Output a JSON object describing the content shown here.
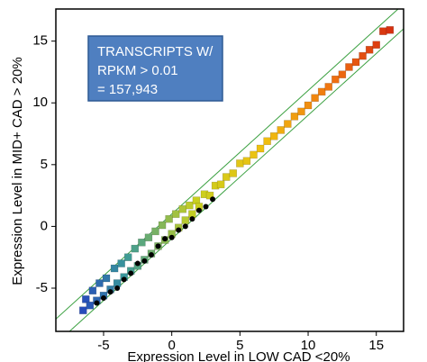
{
  "chart_data": {
    "type": "scatter",
    "xlabel": "Expression Level in LOW CAD <20%",
    "ylabel": "Expression Level in MID+ CAD > 20%",
    "annotation": [
      "TRANSCRIPTS W/",
      "RPKM > 0.01",
      "= 157,943"
    ],
    "xlim": [
      -8.5,
      17
    ],
    "ylim": [
      -8.5,
      17.6
    ],
    "xticks": [
      -5,
      0,
      5,
      10,
      15
    ],
    "yticks": [
      -5,
      0,
      5,
      10,
      15
    ],
    "grid": false,
    "colormap": [
      "#1a1ad0",
      "#3a9a9a",
      "#c8d020",
      "#f0c010",
      "#f07010",
      "#d02010"
    ],
    "x": [
      -6.5,
      -6.3,
      -6,
      -5.8,
      -5.5,
      -5.3,
      -5,
      -4.8,
      -4.5,
      -4.2,
      -4,
      -3.7,
      -3.5,
      -3.2,
      -3,
      -2.7,
      -2.5,
      -2.2,
      -2,
      -1.7,
      -1.5,
      -1.2,
      -1,
      -0.7,
      -0.5,
      -0.2,
      0,
      0.3,
      0.5,
      0.8,
      1,
      1.3,
      1.5,
      1.8,
      2,
      2.4,
      2.8,
      3.2,
      3.6,
      4,
      4.5,
      5,
      5.5,
      6,
      6.5,
      7,
      7.5,
      8,
      8.5,
      9,
      9.5,
      10,
      10.5,
      11,
      11.5,
      12,
      12.5,
      13,
      13.5,
      14,
      14.5,
      15,
      15.5,
      16
    ],
    "y": [
      -6.8,
      -5.9,
      -6.4,
      -5.2,
      -6.0,
      -4.6,
      -5.6,
      -4.2,
      -5.1,
      -3.4,
      -4.6,
      -3.0,
      -4.1,
      -2.5,
      -3.6,
      -1.8,
      -3.2,
      -1.3,
      -2.7,
      -0.9,
      -2.2,
      -0.4,
      -1.6,
      0.1,
      -1.1,
      0.6,
      -0.6,
      1.0,
      -0.1,
      1.4,
      0.5,
      1.7,
      1.0,
      2.1,
      1.6,
      2.6,
      2.5,
      3.3,
      3.4,
      4.0,
      4.3,
      5.1,
      5.3,
      5.8,
      6.3,
      6.9,
      7.3,
      7.8,
      8.3,
      8.9,
      9.3,
      9.8,
      10.4,
      10.9,
      11.3,
      11.9,
      12.3,
      12.9,
      13.3,
      13.8,
      14.3,
      14.7,
      15.8,
      15.9
    ],
    "highlight_points": {
      "color": "#000000",
      "x": [
        -5.5,
        -5,
        -4.5,
        -4,
        -3.5,
        -3,
        -2.5,
        -2,
        -1.5,
        -1,
        -0.5,
        0,
        0.5,
        1,
        1.5,
        2,
        2.5,
        3
      ],
      "y": [
        -6.2,
        -5.8,
        -5.3,
        -5.0,
        -4.3,
        -3.8,
        -3.0,
        -2.8,
        -2.3,
        -1.6,
        -1.0,
        -0.9,
        -0.3,
        0.0,
        0.6,
        1.3,
        1.6,
        2.2
      ]
    },
    "guide_lines": {
      "color": "#3aa040",
      "slope": 1,
      "intercepts": [
        1,
        -1
      ]
    }
  }
}
